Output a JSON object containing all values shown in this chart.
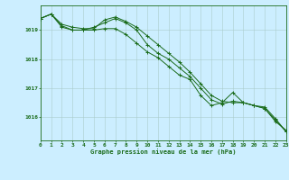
{
  "title": "Graphe pression niveau de la mer (hPa)",
  "background_color": "#cceeff",
  "grid_color": "#aacccc",
  "line_color": "#1a6b1a",
  "xlim": [
    0,
    23
  ],
  "ylim": [
    1015.2,
    1019.85
  ],
  "yticks": [
    1016,
    1017,
    1018,
    1019
  ],
  "xticks": [
    0,
    1,
    2,
    3,
    4,
    5,
    6,
    7,
    8,
    9,
    10,
    11,
    12,
    13,
    14,
    15,
    16,
    17,
    18,
    19,
    20,
    21,
    22,
    23
  ],
  "series": [
    [
      1019.4,
      1019.55,
      1019.2,
      1019.1,
      1019.05,
      1019.05,
      1019.35,
      1019.45,
      1019.3,
      1019.1,
      1018.8,
      1018.5,
      1018.2,
      1017.9,
      1017.55,
      1017.15,
      1016.75,
      1016.55,
      1016.5,
      1016.5,
      1016.4,
      1016.3,
      1015.85,
      1015.55
    ],
    [
      1019.4,
      1019.55,
      1019.15,
      1019.0,
      1019.0,
      1019.1,
      1019.25,
      1019.4,
      1019.25,
      1019.0,
      1018.5,
      1018.2,
      1018.0,
      1017.7,
      1017.4,
      1017.0,
      1016.6,
      1016.45,
      1016.55,
      1016.5,
      1016.4,
      1016.35,
      1015.95,
      1015.5
    ],
    [
      1019.4,
      1019.55,
      1019.1,
      1019.0,
      1019.0,
      1019.0,
      1019.05,
      1019.05,
      1018.85,
      1018.55,
      1018.25,
      1018.05,
      1017.75,
      1017.45,
      1017.3,
      1016.75,
      1016.4,
      1016.5,
      1016.85,
      1016.5,
      1016.4,
      1016.3,
      1015.9,
      1015.5
    ]
  ]
}
